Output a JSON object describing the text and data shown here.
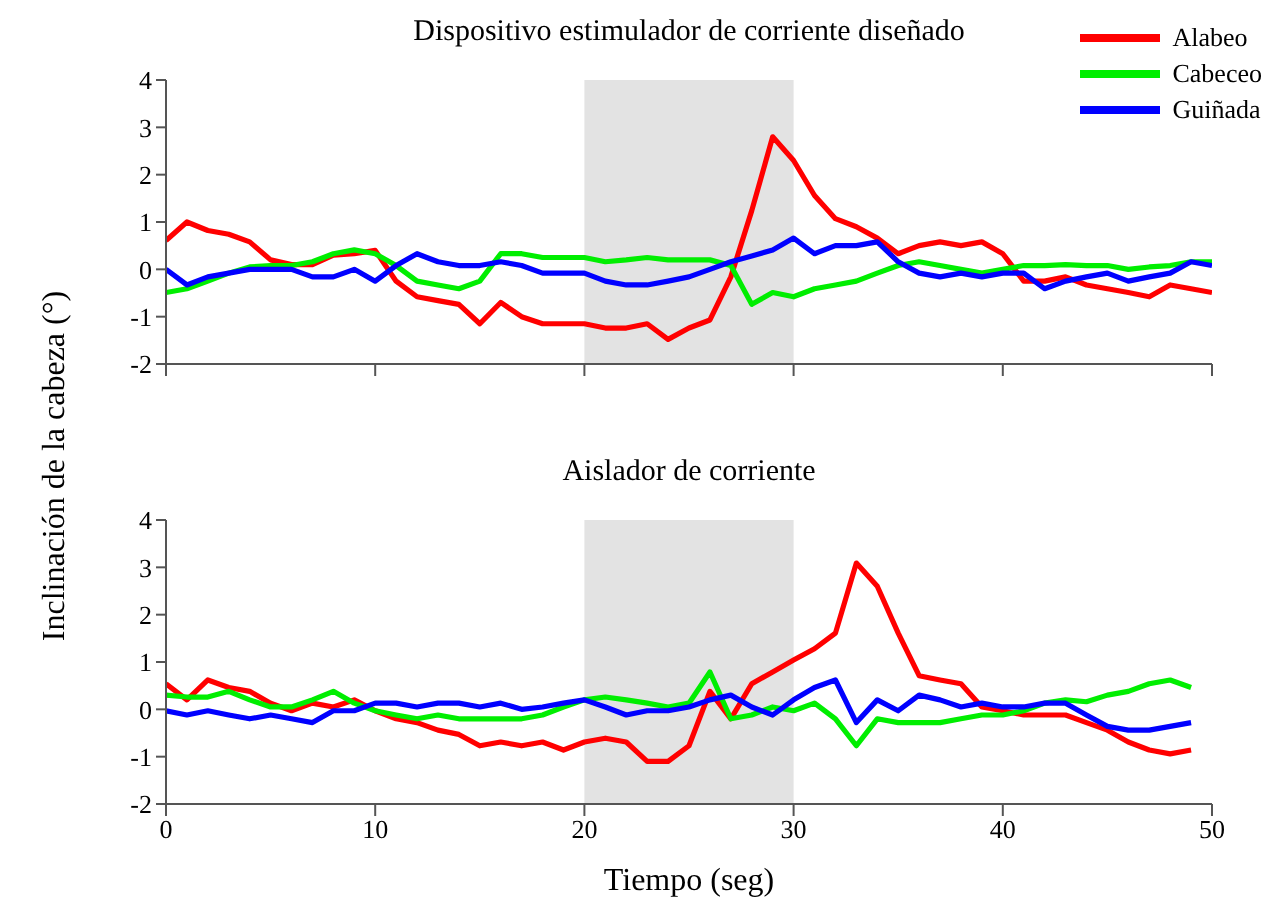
{
  "chart_data": [
    {
      "type": "line",
      "title": "Dispositivo estimulador de corriente diseñado",
      "ylabel": "Inclinación de la cabeza (°)",
      "xlim": [
        0,
        50
      ],
      "xticks": [
        0,
        10,
        20,
        30,
        40,
        50
      ],
      "ylim": [
        -2,
        4
      ],
      "yticks": [
        -2,
        -1,
        0,
        1,
        2,
        3,
        4
      ],
      "tick_labels": "y",
      "legend": "top right",
      "bands": [
        {
          "axis": "x",
          "from": 20,
          "to": 30,
          "color": "#e3e3e3"
        }
      ],
      "x": [
        0,
        1,
        2,
        3,
        4,
        5,
        6,
        7,
        8,
        9,
        10,
        11,
        12,
        13,
        14,
        15,
        16,
        17,
        18,
        19,
        20,
        21,
        22,
        23,
        24,
        25,
        26,
        27,
        28,
        29,
        30,
        31,
        32,
        33,
        34,
        35,
        36,
        37,
        38,
        39,
        40,
        41,
        42,
        43,
        44,
        45,
        46,
        47,
        48,
        49,
        50
      ],
      "series": [
        {
          "name": "Alabeo",
          "color": "#ff0000",
          "values": [
            0.61,
            1.0,
            0.82,
            0.74,
            0.58,
            0.2,
            0.1,
            0.1,
            0.3,
            0.33,
            0.4,
            -0.25,
            -0.58,
            -0.66,
            -0.74,
            -1.15,
            -0.7,
            -1.0,
            -1.15,
            -1.15,
            -1.15,
            -1.24,
            -1.24,
            -1.15,
            -1.48,
            -1.24,
            -1.07,
            -0.16,
            1.24,
            2.8,
            2.3,
            1.56,
            1.07,
            0.9,
            0.66,
            0.33,
            0.5,
            0.58,
            0.5,
            0.58,
            0.33,
            -0.25,
            -0.25,
            -0.16,
            -0.33,
            -0.41,
            -0.49,
            -0.58,
            -0.33,
            -0.41,
            -0.49
          ]
        },
        {
          "name": "Cabeceo",
          "color": "#00ee00",
          "values": [
            -0.49,
            -0.41,
            -0.25,
            -0.08,
            0.05,
            0.08,
            0.08,
            0.16,
            0.33,
            0.41,
            0.33,
            0.08,
            -0.25,
            -0.33,
            -0.41,
            -0.25,
            0.33,
            0.33,
            0.25,
            0.25,
            0.25,
            0.16,
            0.2,
            0.25,
            0.2,
            0.2,
            0.2,
            0.08,
            -0.74,
            -0.49,
            -0.58,
            -0.41,
            -0.33,
            -0.25,
            -0.08,
            0.08,
            0.16,
            0.08,
            0,
            -0.08,
            0,
            0.08,
            0.08,
            0.1,
            0.08,
            0.08,
            0,
            0.05,
            0.08,
            0.16,
            0.16
          ]
        },
        {
          "name": "Guiñada",
          "color": "#0000ff",
          "values": [
            0,
            -0.33,
            -0.16,
            -0.08,
            0,
            0,
            0,
            -0.16,
            -0.16,
            0,
            -0.25,
            0.08,
            0.33,
            0.16,
            0.08,
            0.08,
            0.16,
            0.08,
            -0.08,
            -0.08,
            -0.08,
            -0.25,
            -0.33,
            -0.33,
            -0.25,
            -0.16,
            0,
            0.16,
            0.28,
            0.41,
            0.66,
            0.33,
            0.5,
            0.5,
            0.58,
            0.16,
            -0.08,
            -0.16,
            -0.08,
            -0.16,
            -0.08,
            -0.08,
            -0.41,
            -0.25,
            -0.16,
            -0.08,
            -0.25,
            -0.16,
            -0.08,
            0.16,
            0.08
          ]
        }
      ]
    },
    {
      "type": "line",
      "title": "Aislador de corriente",
      "xlabel": "Tiempo (seg)",
      "xlim": [
        0,
        50
      ],
      "xticks": [
        0,
        10,
        20,
        30,
        40,
        50
      ],
      "ylim": [
        -2,
        4
      ],
      "yticks": [
        -2,
        -1,
        0,
        1,
        2,
        3,
        4
      ],
      "bands": [
        {
          "axis": "x",
          "from": 20,
          "to": 30,
          "color": "#e3e3e3"
        }
      ],
      "x": [
        0,
        1,
        2,
        3,
        4,
        5,
        6,
        7,
        8,
        9,
        10,
        11,
        12,
        13,
        14,
        15,
        16,
        17,
        18,
        19,
        20,
        21,
        22,
        23,
        24,
        25,
        26,
        27,
        28,
        29,
        30,
        31,
        32,
        33,
        34,
        35,
        36,
        37,
        38,
        39,
        40,
        41,
        42,
        43,
        44,
        45,
        46,
        47,
        48,
        49
      ],
      "series": [
        {
          "color": "#ff0000",
          "values": [
            0.54,
            0.2,
            0.62,
            0.46,
            0.38,
            0.13,
            -0.03,
            0.13,
            0.05,
            0.2,
            -0.03,
            -0.2,
            -0.28,
            -0.44,
            -0.53,
            -0.77,
            -0.69,
            -0.77,
            -0.69,
            -0.86,
            -0.69,
            -0.61,
            -0.69,
            -1.1,
            -1.1,
            -0.77,
            0.38,
            -0.2,
            0.54,
            0.79,
            1.04,
            1.28,
            1.61,
            3.09,
            2.6,
            1.61,
            0.71,
            0.62,
            0.54,
            0.05,
            -0.03,
            -0.12,
            -0.12,
            -0.12,
            -0.28,
            -0.44,
            -0.69,
            -0.86,
            -0.94,
            -0.86
          ]
        },
        {
          "color": "#00ee00",
          "values": [
            0.3,
            0.26,
            0.26,
            0.38,
            0.2,
            0.05,
            0.05,
            0.2,
            0.38,
            0.13,
            -0.03,
            -0.12,
            -0.2,
            -0.12,
            -0.2,
            -0.2,
            -0.2,
            -0.2,
            -0.12,
            0.05,
            0.2,
            0.26,
            0.2,
            0.13,
            0.05,
            0.13,
            0.79,
            -0.2,
            -0.12,
            0.05,
            -0.03,
            0.13,
            -0.2,
            -0.77,
            -0.2,
            -0.28,
            -0.28,
            -0.28,
            -0.2,
            -0.12,
            -0.12,
            -0.03,
            0.13,
            0.2,
            0.16,
            0.3,
            0.38,
            0.54,
            0.62,
            0.46
          ]
        },
        {
          "color": "#0000ff",
          "values": [
            -0.03,
            -0.12,
            -0.03,
            -0.12,
            -0.2,
            -0.12,
            -0.2,
            -0.28,
            -0.03,
            -0.03,
            0.13,
            0.13,
            0.05,
            0.13,
            0.13,
            0.05,
            0.13,
            0,
            0.05,
            0.13,
            0.2,
            0.05,
            -0.12,
            -0.03,
            -0.03,
            0.05,
            0.2,
            0.3,
            0.05,
            -0.12,
            0.2,
            0.46,
            0.62,
            -0.28,
            0.2,
            -0.03,
            0.3,
            0.2,
            0.05,
            0.13,
            0.05,
            0.05,
            0.13,
            0.13,
            -0.12,
            -0.36,
            -0.44,
            -0.44,
            -0.36,
            -0.28
          ]
        }
      ]
    }
  ]
}
